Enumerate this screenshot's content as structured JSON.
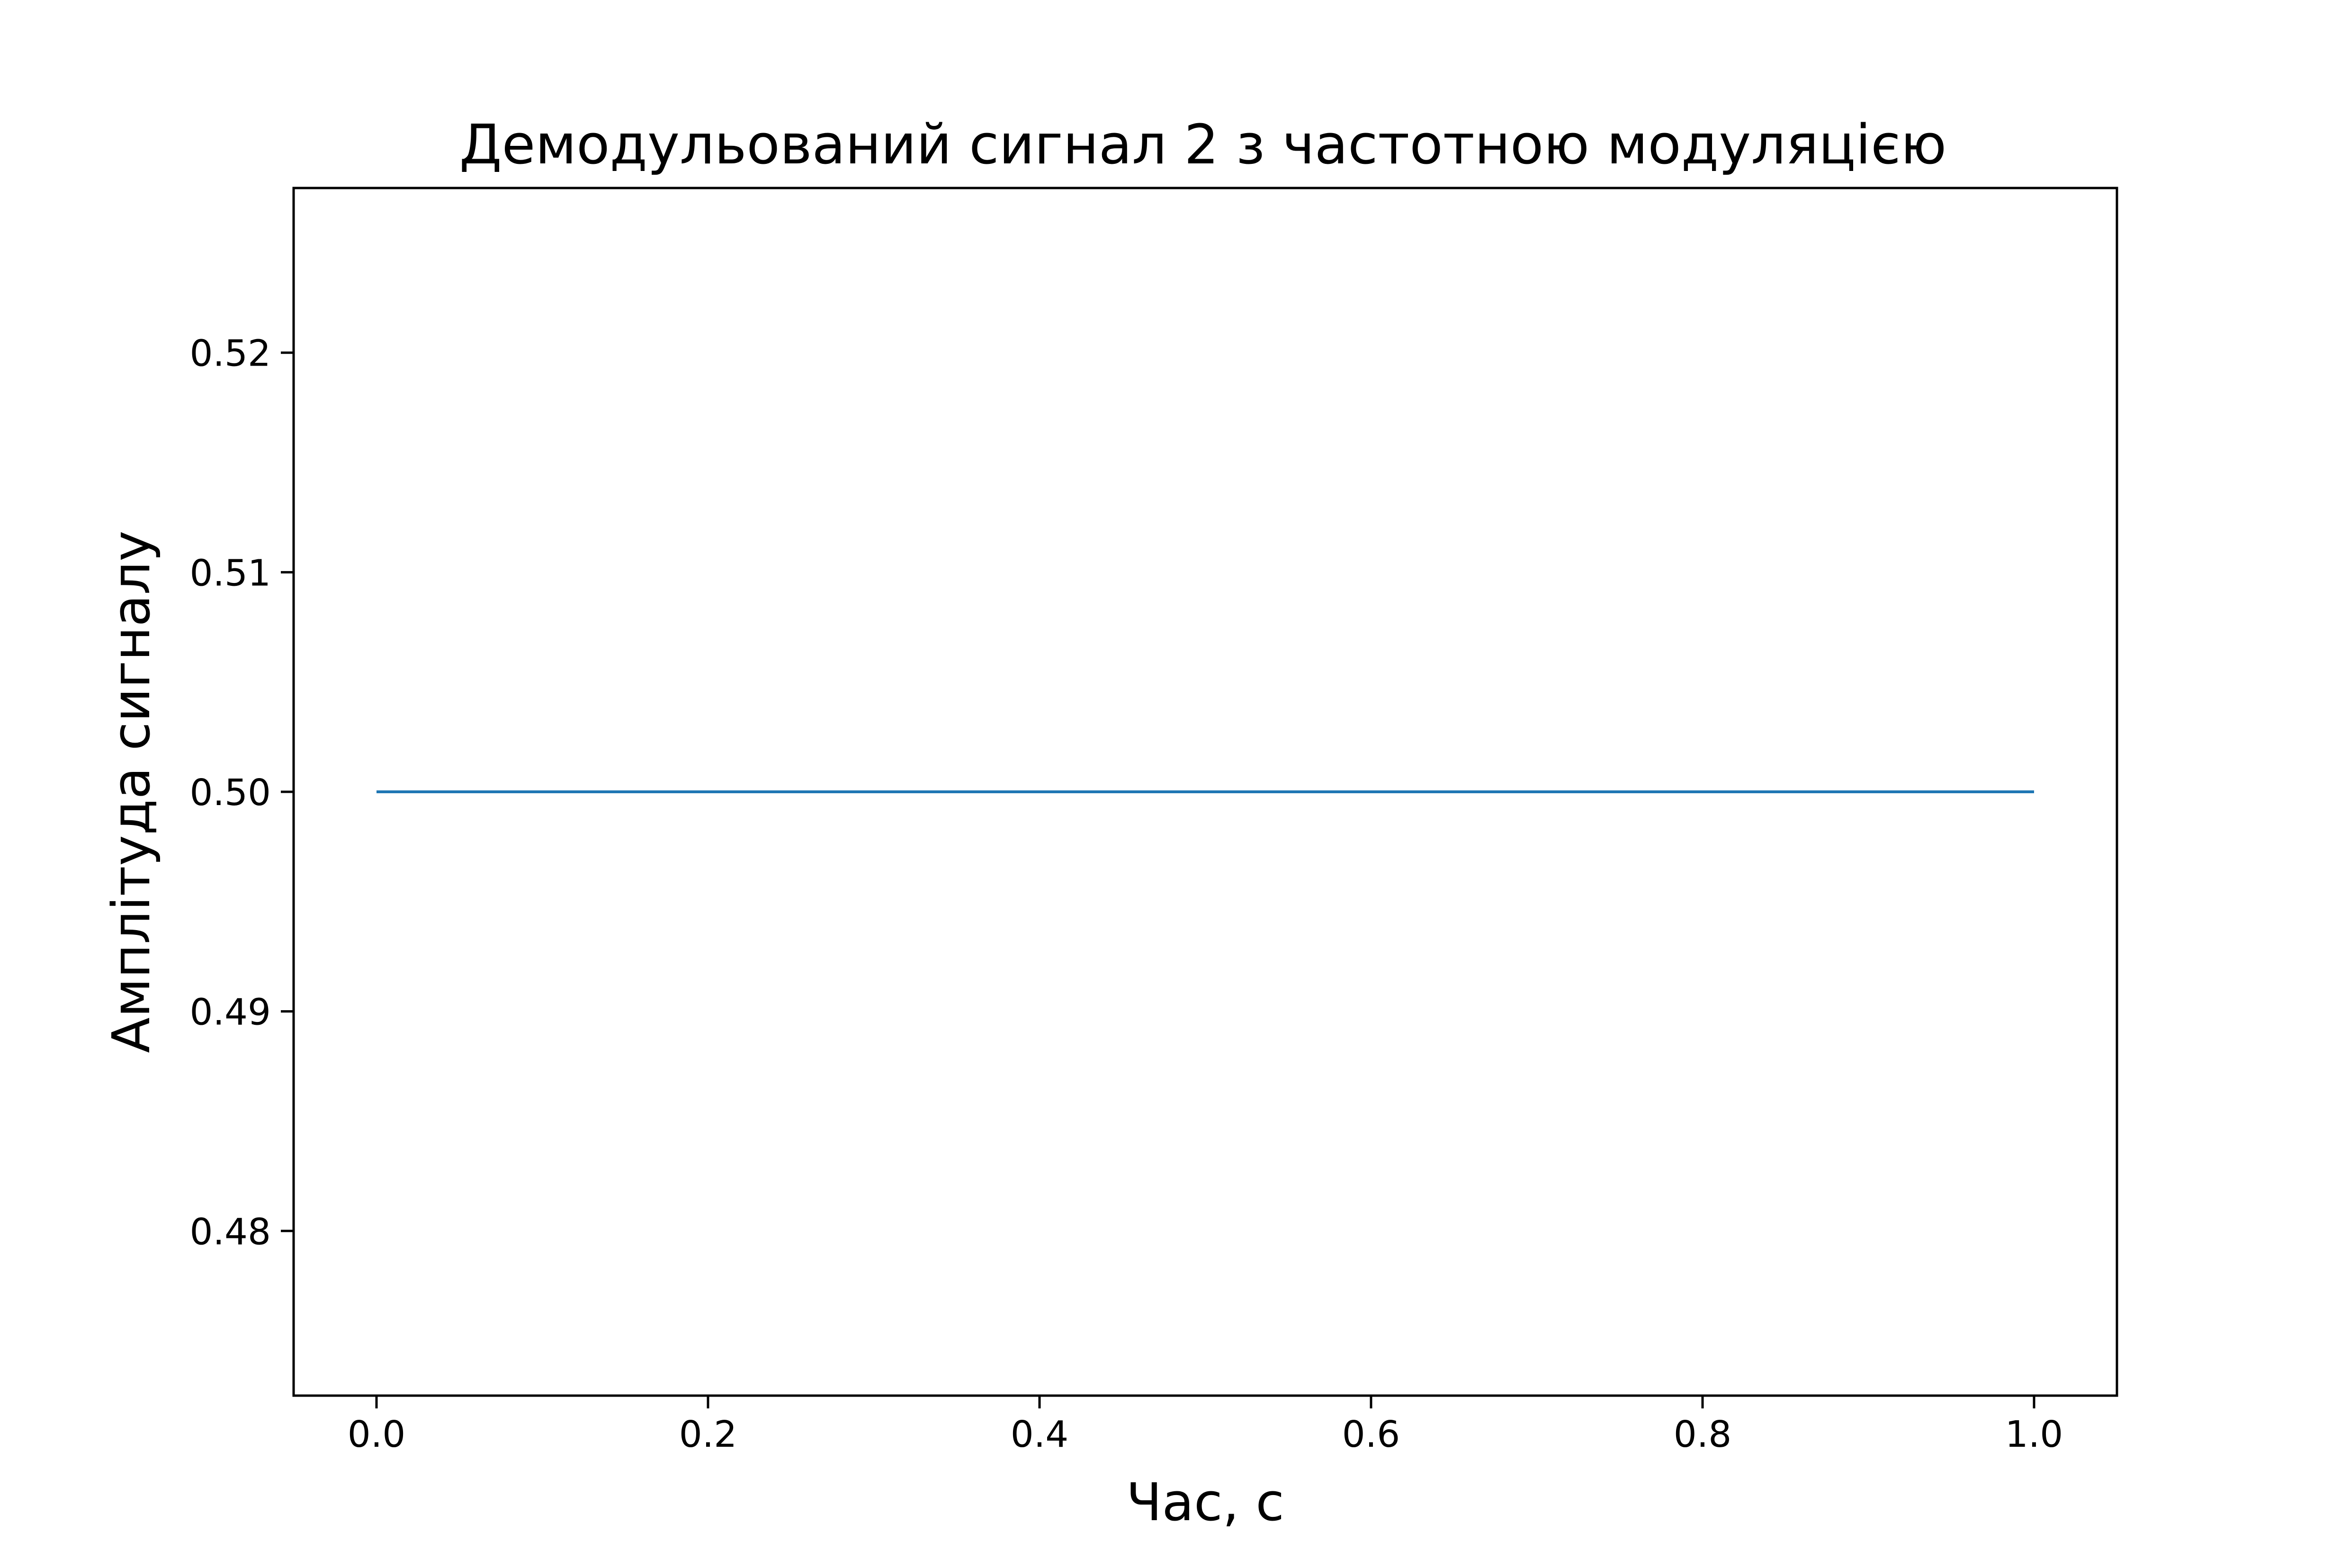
{
  "chart_data": {
    "type": "line",
    "title": "Демодульований сигнал 2 з частотною модуляцією",
    "xlabel": "Час, с",
    "ylabel": "Амплітуда сигналу",
    "xlim": [
      -0.05,
      1.05
    ],
    "ylim": [
      0.4725,
      0.5275
    ],
    "x_ticks": [
      "0.0",
      "0.2",
      "0.4",
      "0.6",
      "0.8",
      "1.0"
    ],
    "y_ticks": [
      "0.48",
      "0.49",
      "0.50",
      "0.51",
      "0.52"
    ],
    "grid": false,
    "legend": "none",
    "series": [
      {
        "color": "#1f77b4",
        "x": [
          0.0,
          1.0
        ],
        "y": [
          0.5,
          0.5
        ]
      }
    ]
  }
}
